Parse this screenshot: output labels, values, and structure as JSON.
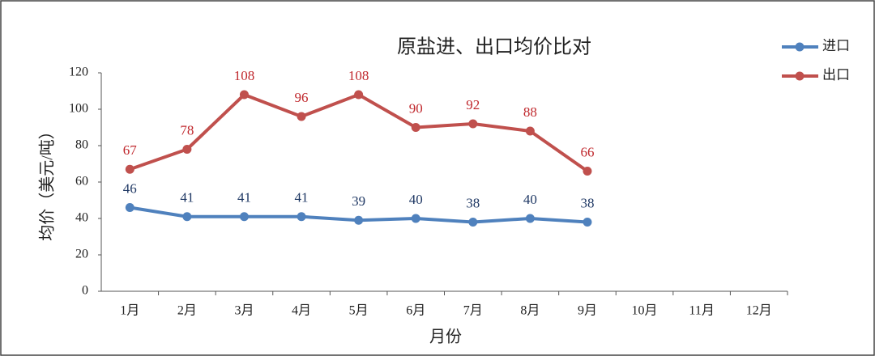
{
  "chart_data": {
    "type": "line",
    "title": "原盐进、出口均价比对",
    "x_label": "月份",
    "y_label": "均价（美元/吨）",
    "categories": [
      "1月",
      "2月",
      "3月",
      "4月",
      "5月",
      "6月",
      "7月",
      "8月",
      "9月",
      "10月",
      "11月",
      "12月"
    ],
    "series": [
      {
        "name": "进口",
        "color": "#4f81bd",
        "label_color": "#1f3864",
        "values": [
          46,
          41,
          41,
          41,
          39,
          40,
          38,
          40,
          38,
          null,
          null,
          null
        ]
      },
      {
        "name": "出口",
        "color": "#c0504d",
        "label_color": "#c0282d",
        "values": [
          67,
          78,
          108,
          96,
          108,
          90,
          92,
          88,
          66,
          null,
          null,
          null
        ]
      }
    ],
    "ylim": [
      0,
      120
    ],
    "yticks": [
      0,
      20,
      40,
      60,
      80,
      100,
      120
    ],
    "grid": false,
    "legend": "top-right",
    "data_labels": true
  }
}
